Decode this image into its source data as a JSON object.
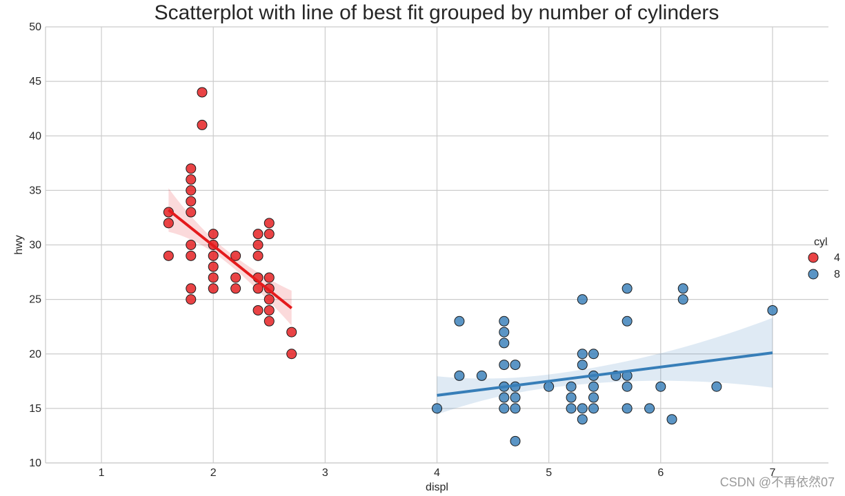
{
  "chart_data": {
    "type": "scatter",
    "title": "Scatterplot with line of best fit grouped by number of cylinders",
    "xlabel": "displ",
    "ylabel": "hwy",
    "xlim": [
      0.5,
      7.5
    ],
    "ylim": [
      10,
      50
    ],
    "x_ticks": [
      1,
      2,
      3,
      4,
      5,
      6,
      7
    ],
    "y_ticks": [
      10,
      15,
      20,
      25,
      30,
      35,
      40,
      45,
      50
    ],
    "grid": true,
    "legend": {
      "title": "cyl",
      "placement": "right",
      "entries": [
        "4",
        "8"
      ]
    },
    "series": [
      {
        "name": "4",
        "color": "#e41a1c",
        "points": [
          [
            1.6,
            33
          ],
          [
            1.6,
            32
          ],
          [
            1.6,
            29
          ],
          [
            1.8,
            37
          ],
          [
            1.8,
            36
          ],
          [
            1.8,
            35
          ],
          [
            1.8,
            34
          ],
          [
            1.8,
            33
          ],
          [
            1.8,
            30
          ],
          [
            1.8,
            29
          ],
          [
            1.8,
            26
          ],
          [
            1.8,
            25
          ],
          [
            1.9,
            44
          ],
          [
            1.9,
            41
          ],
          [
            2.0,
            31
          ],
          [
            2.0,
            30
          ],
          [
            2.0,
            29
          ],
          [
            2.0,
            28
          ],
          [
            2.0,
            27
          ],
          [
            2.0,
            26
          ],
          [
            2.2,
            29
          ],
          [
            2.2,
            27
          ],
          [
            2.2,
            26
          ],
          [
            2.4,
            31
          ],
          [
            2.4,
            30
          ],
          [
            2.4,
            29
          ],
          [
            2.4,
            27
          ],
          [
            2.4,
            26
          ],
          [
            2.4,
            24
          ],
          [
            2.5,
            32
          ],
          [
            2.5,
            31
          ],
          [
            2.5,
            27
          ],
          [
            2.5,
            26
          ],
          [
            2.5,
            25
          ],
          [
            2.5,
            24
          ],
          [
            2.5,
            23
          ],
          [
            2.7,
            22
          ],
          [
            2.7,
            20
          ]
        ],
        "fit": {
          "x": [
            1.6,
            2.7
          ],
          "y": [
            33.2,
            24.2
          ],
          "ci_lower": [
            31.2,
            22.6
          ],
          "ci_upper": [
            35.2,
            25.8
          ],
          "ci_mid": [
            2.1,
            29.1
          ]
        }
      },
      {
        "name": "8",
        "color": "#377eb8",
        "points": [
          [
            4.0,
            15
          ],
          [
            4.2,
            23
          ],
          [
            4.2,
            18
          ],
          [
            4.4,
            18
          ],
          [
            4.6,
            23
          ],
          [
            4.6,
            22
          ],
          [
            4.6,
            21
          ],
          [
            4.6,
            19
          ],
          [
            4.6,
            17
          ],
          [
            4.6,
            16
          ],
          [
            4.6,
            15
          ],
          [
            4.7,
            19
          ],
          [
            4.7,
            17
          ],
          [
            4.7,
            16
          ],
          [
            4.7,
            15
          ],
          [
            4.7,
            12
          ],
          [
            5.0,
            17
          ],
          [
            5.2,
            17
          ],
          [
            5.2,
            16
          ],
          [
            5.2,
            15
          ],
          [
            5.3,
            25
          ],
          [
            5.3,
            20
          ],
          [
            5.3,
            19
          ],
          [
            5.3,
            15
          ],
          [
            5.3,
            14
          ],
          [
            5.4,
            20
          ],
          [
            5.4,
            18
          ],
          [
            5.4,
            17
          ],
          [
            5.4,
            16
          ],
          [
            5.4,
            15
          ],
          [
            5.6,
            18
          ],
          [
            5.7,
            26
          ],
          [
            5.7,
            23
          ],
          [
            5.7,
            18
          ],
          [
            5.7,
            17
          ],
          [
            5.7,
            15
          ],
          [
            5.9,
            15
          ],
          [
            6.0,
            17
          ],
          [
            6.1,
            14
          ],
          [
            6.2,
            26
          ],
          [
            6.2,
            25
          ],
          [
            6.5,
            17
          ],
          [
            7.0,
            24
          ]
        ],
        "fit": {
          "x": [
            4.0,
            7.0
          ],
          "y": [
            16.2,
            20.1
          ],
          "ci_lower": [
            14.5,
            16.7
          ],
          "ci_upper": [
            18.0,
            23.1
          ],
          "ci_mid": [
            5.0,
            17.4
          ]
        }
      }
    ]
  },
  "watermark": "CSDN @不再依然07"
}
